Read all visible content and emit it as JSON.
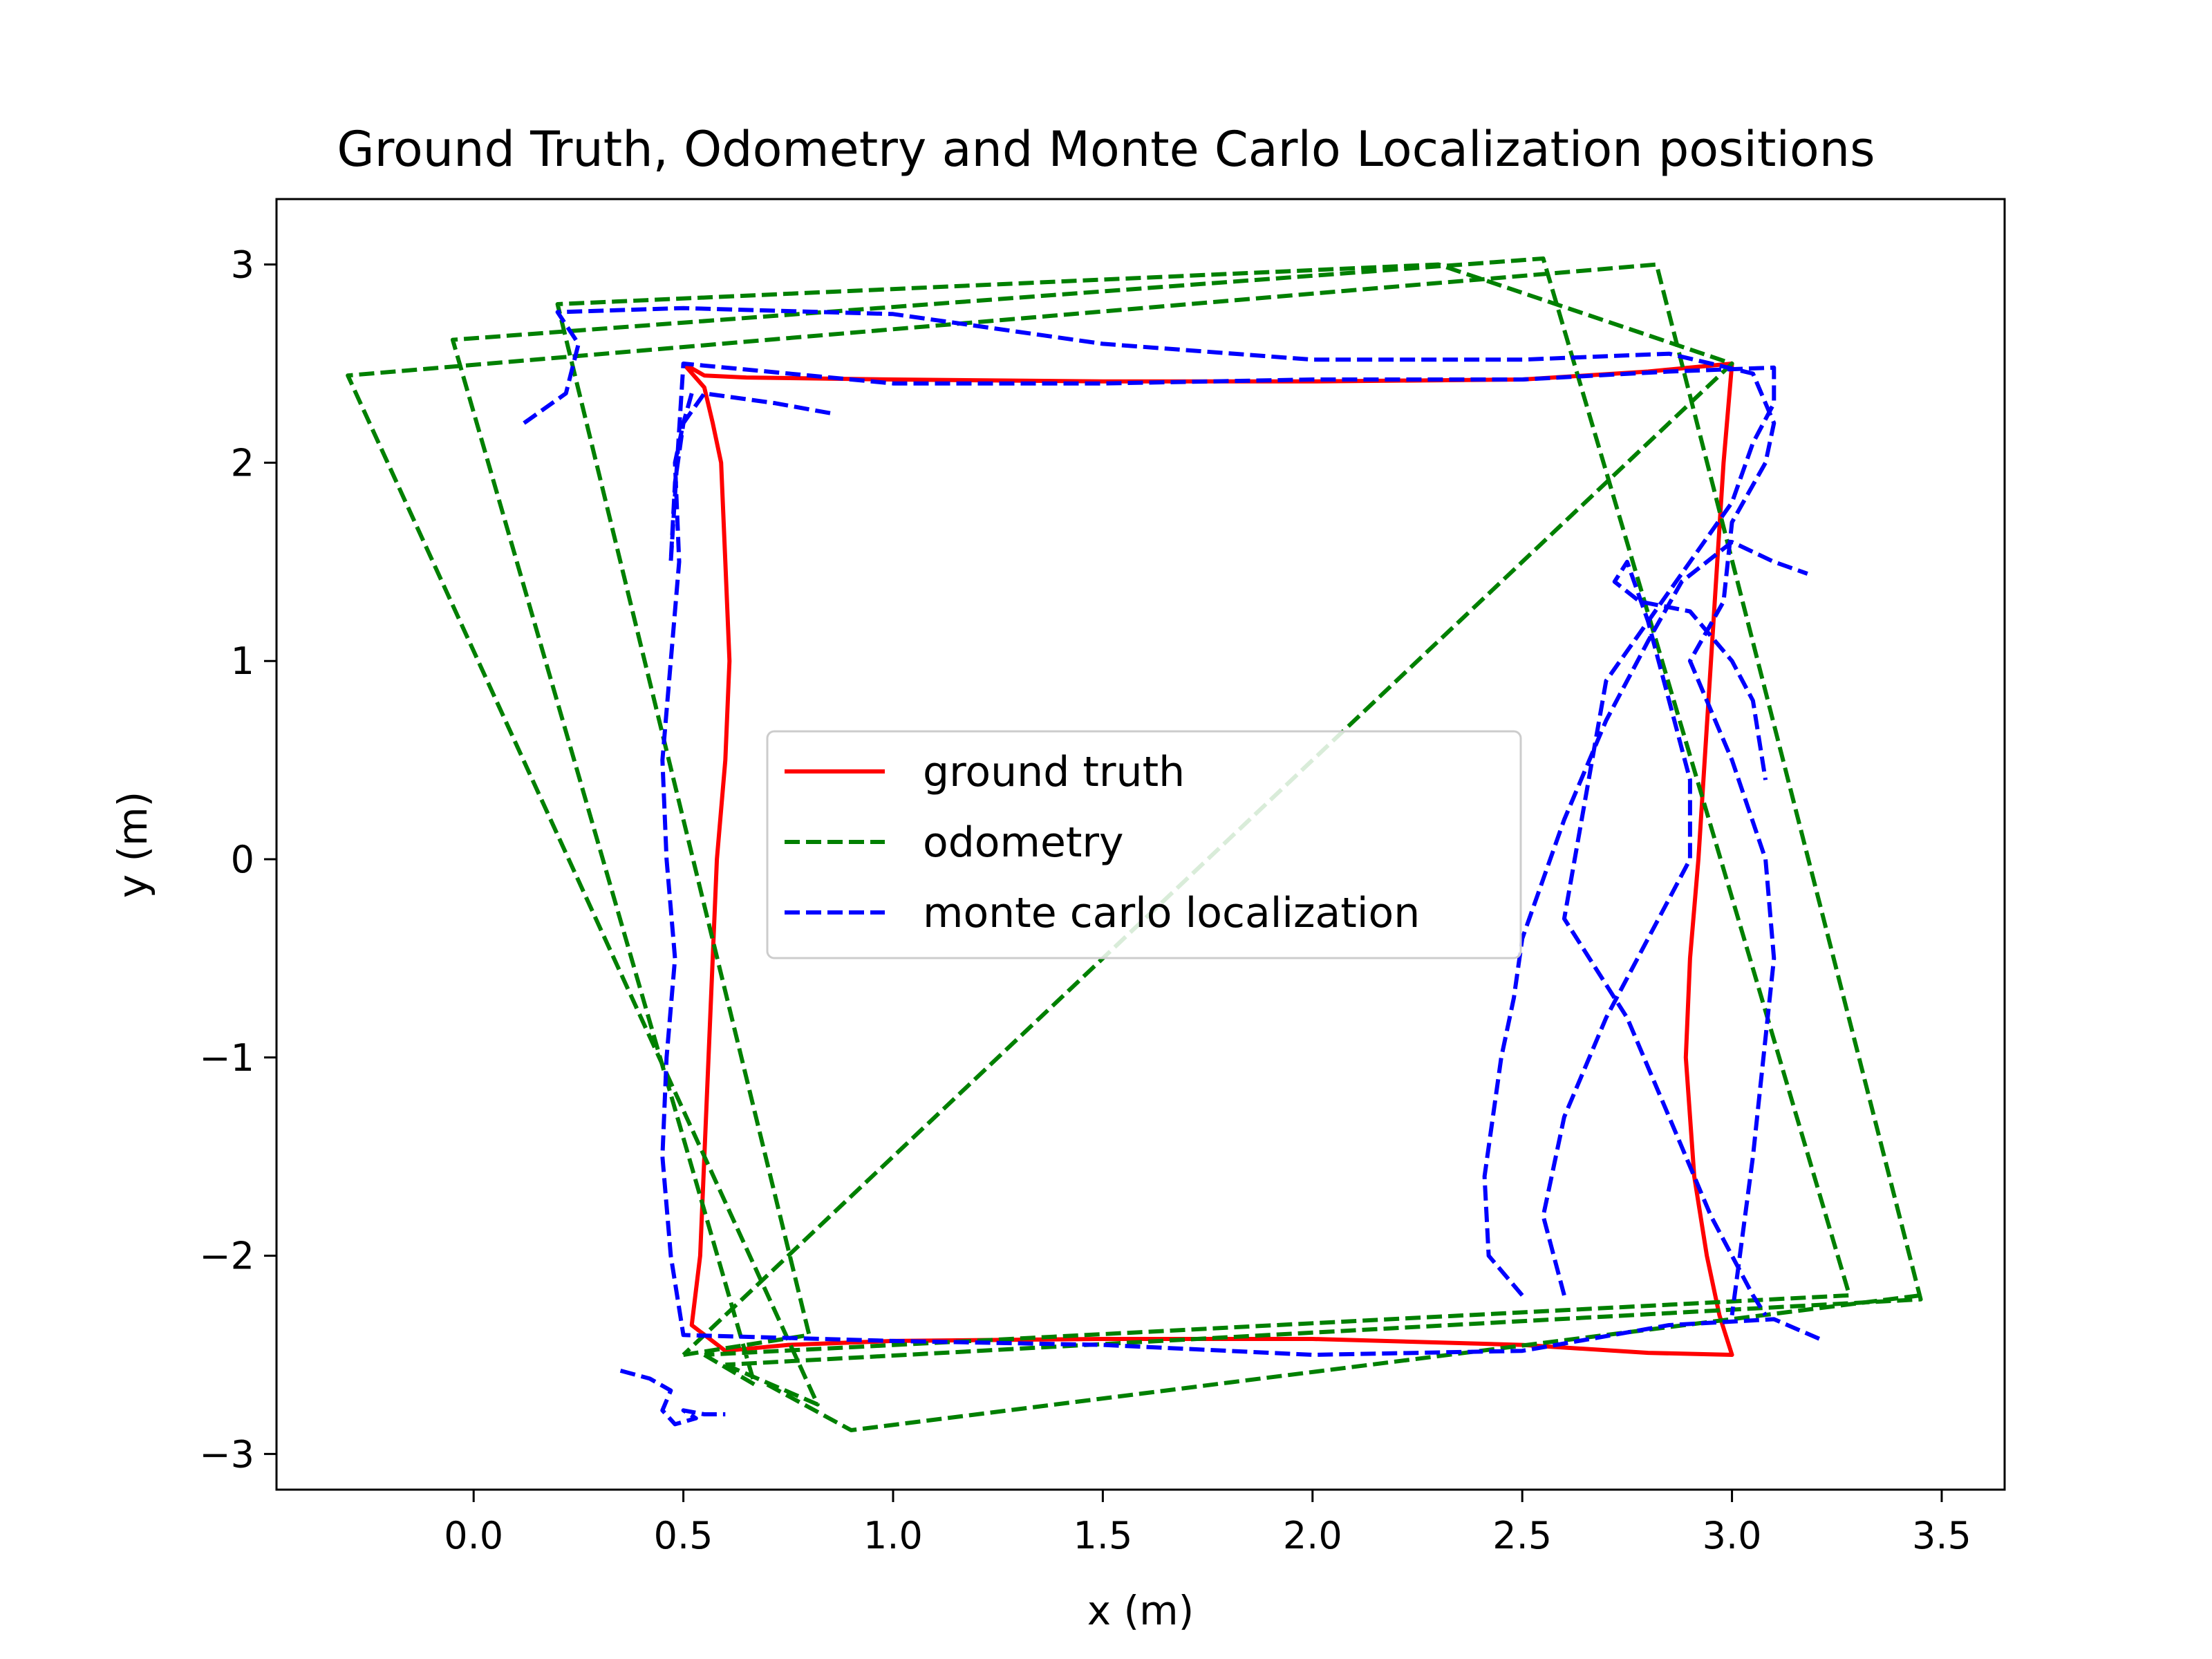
{
  "chart_data": {
    "type": "line",
    "title": "Ground Truth, Odometry and Monte Carlo Localization positions",
    "xlabel": "x (m)",
    "ylabel": "y (m)",
    "xlim": [
      -0.47,
      3.65
    ],
    "ylim": [
      -3.18,
      3.33
    ],
    "xticks": [
      0.0,
      0.5,
      1.0,
      1.5,
      2.0,
      2.5,
      3.0,
      3.5
    ],
    "xtick_labels": [
      "0.0",
      "0.5",
      "1.0",
      "1.5",
      "2.0",
      "2.5",
      "3.0",
      "3.5"
    ],
    "yticks": [
      -3,
      -2,
      -1,
      0,
      1,
      2,
      3
    ],
    "ytick_labels": [
      "−3",
      "−2",
      "−1",
      "0",
      "1",
      "2",
      "3"
    ],
    "grid": false,
    "legend_position": "center",
    "series": [
      {
        "name": "ground truth",
        "color": "#ff0000",
        "style": "solid",
        "x": [
          0.5,
          0.55,
          0.65,
          1.0,
          1.5,
          2.0,
          2.5,
          2.8,
          3.0,
          2.98,
          2.95,
          2.92,
          2.9,
          2.89,
          2.91,
          2.94,
          2.97,
          3.0,
          2.8,
          2.5,
          2.0,
          1.5,
          1.0,
          0.75,
          0.6,
          0.52,
          0.54,
          0.56,
          0.58,
          0.6,
          0.61,
          0.6,
          0.59,
          0.57,
          0.55,
          0.5
        ],
        "y": [
          2.5,
          2.44,
          2.43,
          2.42,
          2.41,
          2.41,
          2.42,
          2.46,
          2.5,
          2.0,
          1.0,
          0.0,
          -0.5,
          -1.0,
          -1.6,
          -2.0,
          -2.3,
          -2.5,
          -2.49,
          -2.45,
          -2.42,
          -2.42,
          -2.43,
          -2.45,
          -2.48,
          -2.35,
          -2.0,
          -1.0,
          0.0,
          0.5,
          1.0,
          1.5,
          2.0,
          2.2,
          2.38,
          2.5
        ]
      },
      {
        "name": "odometry",
        "color": "#008000",
        "style": "dashed",
        "lines": [
          {
            "x": [
              0.5,
              0.8,
              0.2,
              2.3,
              3.0,
              0.5
            ],
            "y": [
              -2.5,
              -2.4,
              2.8,
              3.0,
              2.5,
              -2.5
            ]
          },
          {
            "x": [
              0.55,
              0.67,
              -0.05,
              2.55,
              3.28,
              0.55
            ],
            "y": [
              -2.5,
              -2.65,
              2.62,
              3.03,
              -2.2,
              -2.5
            ]
          },
          {
            "x": [
              0.6,
              0.82,
              -0.3,
              2.82,
              3.45,
              0.6
            ],
            "y": [
              -2.55,
              -2.75,
              2.44,
              3.0,
              -2.22,
              -2.55
            ]
          },
          {
            "x": [
              0.7,
              0.9,
              3.45
            ],
            "y": [
              -2.65,
              -2.88,
              -2.2
            ]
          }
        ]
      },
      {
        "name": "monte carlo localization",
        "color": "#0000ff",
        "style": "dashed",
        "lines": [
          {
            "x": [
              0.85,
              0.72,
              0.55,
              0.5,
              0.48,
              0.49,
              0.47,
              0.45,
              0.46,
              0.48,
              0.46,
              0.45,
              0.47,
              0.5,
              1.0,
              1.5,
              2.0,
              2.5,
              2.85,
              3.1,
              3.22
            ],
            "y": [
              2.25,
              2.3,
              2.35,
              2.2,
              2.0,
              1.5,
              1.0,
              0.5,
              0.0,
              -0.5,
              -1.0,
              -1.5,
              -2.0,
              -2.4,
              -2.43,
              -2.45,
              -2.5,
              -2.48,
              -2.35,
              -2.32,
              -2.43
            ]
          },
          {
            "x": [
              0.12,
              0.22,
              0.25,
              0.2,
              0.5,
              1.0,
              1.5,
              2.0,
              2.5,
              2.85,
              3.05,
              3.1,
              3.08,
              3.0,
              2.98,
              2.9,
              3.0,
              3.08,
              3.1,
              3.05,
              3.0
            ],
            "y": [
              2.2,
              2.35,
              2.6,
              2.76,
              2.78,
              2.75,
              2.6,
              2.52,
              2.52,
              2.55,
              2.45,
              2.2,
              2.0,
              1.7,
              1.3,
              1.0,
              0.5,
              0.0,
              -0.5,
              -1.5,
              -2.3
            ]
          },
          {
            "x": [
              0.35,
              0.42,
              0.47,
              0.45,
              0.48,
              0.53,
              0.5,
              0.55,
              0.6
            ],
            "y": [
              -2.58,
              -2.62,
              -2.68,
              -2.78,
              -2.85,
              -2.82,
              -2.78,
              -2.8,
              -2.8
            ]
          },
          {
            "x": [
              0.52,
              0.5,
              0.48,
              0.47,
              0.5,
              1.0,
              1.5,
              2.0,
              2.5,
              2.85,
              3.1,
              3.1,
              3.05,
              3.0,
              2.9,
              2.7,
              2.65,
              2.6,
              2.75,
              2.85,
              2.95,
              3.05,
              3.08
            ],
            "y": [
              2.35,
              2.2,
              1.9,
              1.5,
              2.5,
              2.4,
              2.4,
              2.42,
              2.42,
              2.46,
              2.48,
              2.3,
              2.1,
              1.8,
              1.5,
              0.9,
              0.3,
              -0.3,
              -0.8,
              -1.3,
              -1.8,
              -2.2,
              -2.3
            ]
          },
          {
            "x": [
              2.5,
              2.42,
              2.41,
              2.45,
              2.48,
              2.5,
              2.55,
              2.6,
              2.7,
              2.8,
              2.88,
              3.0,
              3.1,
              3.18
            ],
            "y": [
              -2.2,
              -2.0,
              -1.6,
              -1.0,
              -0.7,
              -0.4,
              -0.1,
              0.2,
              0.7,
              1.1,
              1.4,
              1.6,
              1.5,
              1.44
            ]
          },
          {
            "x": [
              2.6,
              2.55,
              2.6,
              2.7,
              2.8,
              2.85,
              2.9,
              2.9,
              2.85,
              2.8,
              2.75,
              2.72,
              2.78,
              2.9,
              3.0,
              3.05,
              3.08
            ],
            "y": [
              -2.2,
              -1.8,
              -1.3,
              -0.8,
              -0.4,
              -0.2,
              0.0,
              0.4,
              0.8,
              1.2,
              1.5,
              1.4,
              1.3,
              1.25,
              1.0,
              0.8,
              0.4
            ]
          }
        ]
      }
    ]
  }
}
